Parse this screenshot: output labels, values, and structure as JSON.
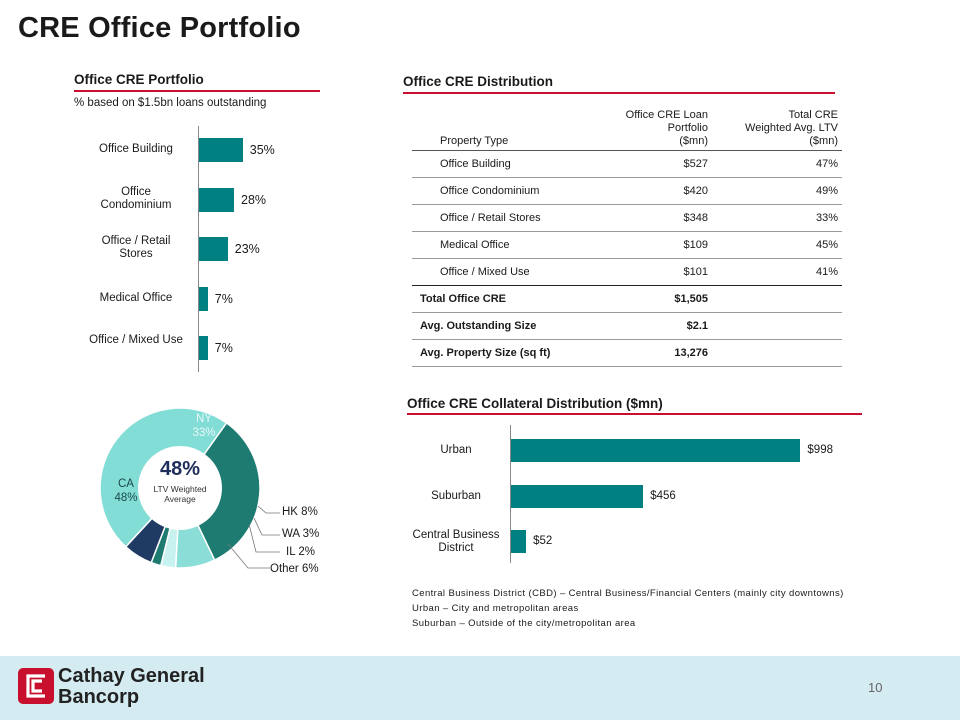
{
  "page": {
    "title": "CRE Office Portfolio",
    "number": "10"
  },
  "portfolio": {
    "title": "Office CRE Portfolio",
    "subtitle": "% based on $1.5bn loans outstanding",
    "labels": [
      "Office Building",
      "Office Condominium",
      "Office / Retail Stores",
      "Medical Office",
      "Office / Mixed Use"
    ],
    "value_labels": [
      "35%",
      "28%",
      "23%",
      "7%",
      "7%"
    ]
  },
  "distribution": {
    "title": "Office CRE Distribution",
    "headers": {
      "col1": "Property Type",
      "col2_lines": [
        "Office CRE Loan",
        "Portfolio",
        "($mn)"
      ],
      "col3_lines": [
        "Total CRE",
        "Weighted Avg. LTV",
        "($mn)"
      ]
    },
    "rows": [
      {
        "type": "Office Building",
        "portfolio": "$527",
        "ltv": "47%"
      },
      {
        "type": "Office Condominium",
        "portfolio": "$420",
        "ltv": "49%"
      },
      {
        "type": "Office / Retail Stores",
        "portfolio": "$348",
        "ltv": "33%"
      },
      {
        "type": "Medical Office",
        "portfolio": "$109",
        "ltv": "45%"
      },
      {
        "type": "Office / Mixed Use",
        "portfolio": "$101",
        "ltv": "41%"
      }
    ],
    "totals": [
      {
        "label": "Total Office CRE",
        "value": "$1,505"
      },
      {
        "label": "Avg. Outstanding Size",
        "value": "$2.1"
      },
      {
        "label": "Avg. Property Size (sq ft)",
        "value": "13,276"
      }
    ]
  },
  "geo": {
    "center_value": "48%",
    "center_label_lines": [
      "LTV Weighted",
      "Average"
    ],
    "labels": {
      "ny": [
        "NY",
        "33%"
      ],
      "ca": [
        "CA",
        "48%"
      ],
      "hk": "HK 8%",
      "wa": "WA 3%",
      "il": "IL 2%",
      "other": "Other 6%"
    }
  },
  "collateral": {
    "title": "Office CRE Collateral Distribution ($mn)",
    "labels": [
      "Urban",
      "Suburban",
      "Central Business District"
    ],
    "value_labels": [
      "$998",
      "$456",
      "$52"
    ],
    "notes": [
      "Central Business District (CBD) – Central Business/Financial Centers (mainly city downtowns)",
      "Urban – City and metropolitan areas",
      "Suburban – Outside of the city/metropolitan area"
    ]
  },
  "brand": {
    "name_line1": "Cathay General",
    "name_line2": "Bancorp",
    "red": "#c8102e",
    "teal": "#008080"
  },
  "chart_data": [
    {
      "type": "bar",
      "orientation": "horizontal",
      "title": "Office CRE Portfolio",
      "categories": [
        "Office Building",
        "Office Condominium",
        "Office / Retail Stores",
        "Medical Office",
        "Office / Mixed Use"
      ],
      "values": [
        35,
        28,
        23,
        7,
        7
      ],
      "unit": "%"
    },
    {
      "type": "pie",
      "variant": "donut",
      "categories": [
        "NY",
        "HK",
        "WA",
        "IL",
        "Other",
        "CA"
      ],
      "values": [
        33,
        8,
        3,
        2,
        6,
        48
      ],
      "colors": [
        "#1e7b72",
        "#8bddd8",
        "#c8f2f0",
        "#1e7b72",
        "#1f3b63",
        "#83ddd7"
      ],
      "unit": "%"
    },
    {
      "type": "bar",
      "orientation": "horizontal",
      "title": "Office CRE Collateral Distribution ($mn)",
      "categories": [
        "Urban",
        "Suburban",
        "Central Business District"
      ],
      "values": [
        998,
        456,
        52
      ],
      "unit": "$mn"
    }
  ]
}
